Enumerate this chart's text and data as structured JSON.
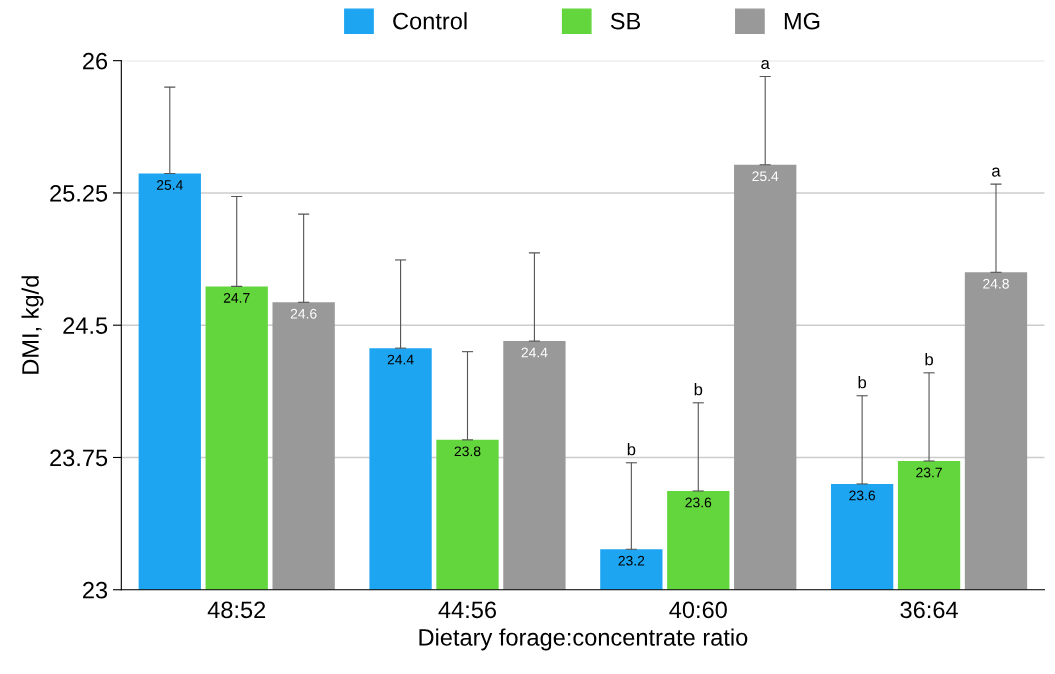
{
  "chart_data": {
    "type": "bar",
    "xlabel": "Dietary forage:concentrate ratio",
    "ylabel": "DMI, kg/d",
    "categories": [
      "48:52",
      "44:56",
      "40:60",
      "36:64"
    ],
    "series": [
      {
        "name": "Control",
        "color": "#1ea5f2",
        "values": [
          25.36,
          24.37,
          23.23,
          23.6
        ],
        "value_labels": [
          "25.4",
          "24.4",
          "23.2",
          "23.6"
        ],
        "errors": [
          [
            25.36,
            25.85
          ],
          [
            24.37,
            24.87
          ],
          [
            23.23,
            23.72
          ],
          [
            23.6,
            24.1
          ]
        ]
      },
      {
        "name": "SB",
        "color": "#62d63c",
        "values": [
          24.72,
          23.85,
          23.56,
          23.73
        ],
        "value_labels": [
          "24.7",
          "23.8",
          "23.6",
          "23.7"
        ],
        "errors": [
          [
            24.72,
            25.23
          ],
          [
            23.85,
            24.35
          ],
          [
            23.56,
            24.06
          ],
          [
            23.73,
            24.23
          ]
        ]
      },
      {
        "name": "MG",
        "color": "#999999",
        "values": [
          24.63,
          24.41,
          25.41,
          24.8
        ],
        "value_labels": [
          "24.6",
          "24.4",
          "25.4",
          "24.8"
        ],
        "errors": [
          [
            24.63,
            25.13
          ],
          [
            24.41,
            24.91
          ],
          [
            25.41,
            25.91
          ],
          [
            24.8,
            25.3
          ]
        ]
      }
    ],
    "annotations": [
      "b",
      "b",
      "a",
      "b",
      "b",
      "a"
    ],
    "ylim": [
      23,
      26
    ],
    "yticks": [
      23,
      23.75,
      24.5,
      25.25,
      26
    ],
    "grid": "y",
    "legend": "top"
  }
}
